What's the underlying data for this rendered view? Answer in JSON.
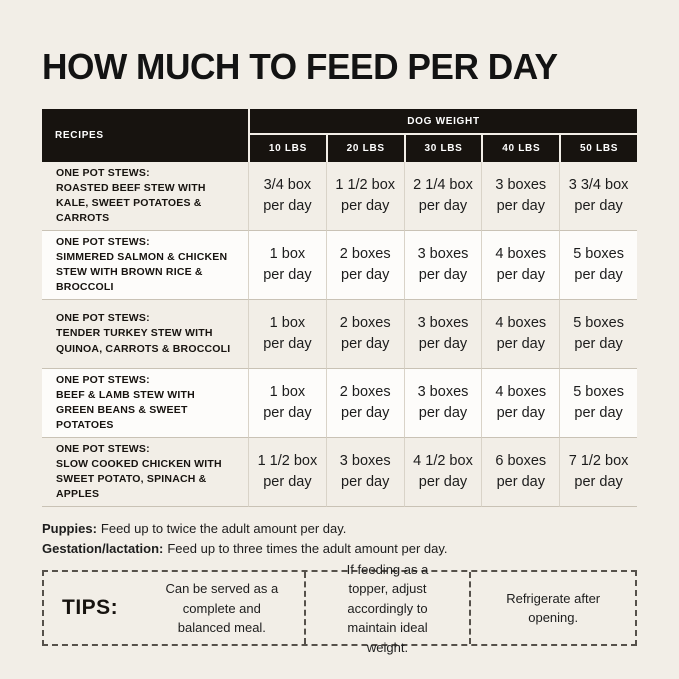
{
  "title": "HOW MUCH TO FEED PER DAY",
  "colors": {
    "background": "#f2eee7",
    "header_black": "#17130f",
    "row_white": "#fdfcfa",
    "grid_line": "#d9d3c8"
  },
  "chart_data": {
    "type": "table",
    "title": "HOW MUCH TO FEED PER DAY",
    "corner_header": "RECIPES",
    "column_group_header": "DOG WEIGHT",
    "columns": [
      "10 LBS",
      "20 LBS",
      "30 LBS",
      "40 LBS",
      "50 LBS"
    ],
    "per_unit": "per day",
    "rows": [
      {
        "category": "ONE POT STEWS:",
        "name": "ROASTED BEEF STEW WITH KALE, SWEET POTATOES & CARROTS",
        "amounts": [
          "3/4 box",
          "1 1/2 box",
          "2 1/4 box",
          "3 boxes",
          "3 3/4 box"
        ]
      },
      {
        "category": "ONE POT STEWS:",
        "name": "SIMMERED SALMON & CHICKEN STEW WITH BROWN RICE & BROCCOLI",
        "amounts": [
          "1 box",
          "2 boxes",
          "3 boxes",
          "4 boxes",
          "5 boxes"
        ]
      },
      {
        "category": "ONE POT STEWS:",
        "name": "TENDER TURKEY STEW WITH QUINOA, CARROTS & BROCCOLI",
        "amounts": [
          "1 box",
          "2 boxes",
          "3 boxes",
          "4 boxes",
          "5 boxes"
        ]
      },
      {
        "category": "ONE POT STEWS:",
        "name": "BEEF & LAMB STEW WITH GREEN BEANS & SWEET POTATOES",
        "amounts": [
          "1 box",
          "2 boxes",
          "3 boxes",
          "4 boxes",
          "5 boxes"
        ]
      },
      {
        "category": "ONE POT STEWS:",
        "name": "SLOW COOKED CHICKEN WITH SWEET POTATO, SPINACH & APPLES",
        "amounts": [
          "1 1/2 box",
          "3 boxes",
          "4 1/2 box",
          "6 boxes",
          "7 1/2 box"
        ]
      }
    ]
  },
  "notes": [
    {
      "label": "Puppies:",
      "text": "Feed up to twice the adult amount per day."
    },
    {
      "label": "Gestation/lactation:",
      "text": "Feed up to three times the adult amount per day."
    }
  ],
  "tips": {
    "label": "TIPS:",
    "items": [
      "Can be served as a complete and balanced meal.",
      "If feeding as a topper, adjust accordingly to maintain ideal weight.",
      "Refrigerate after opening."
    ]
  }
}
